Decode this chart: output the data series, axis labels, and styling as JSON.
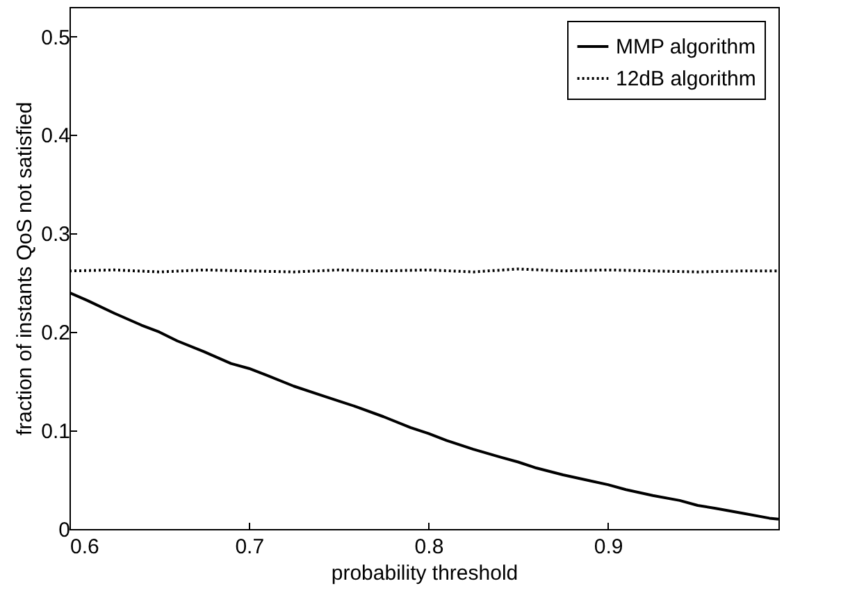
{
  "chart_data": {
    "type": "line",
    "xlabel": "probability threshold",
    "ylabel": "fraction of instants QoS not satisfied",
    "xlim": [
      0.6,
      0.995
    ],
    "ylim": [
      0,
      0.53
    ],
    "xticks": [
      0.6,
      0.7,
      0.8,
      0.9
    ],
    "yticks": [
      0,
      0.1,
      0.2,
      0.3,
      0.4,
      0.5
    ],
    "grid": false,
    "legend": "top right",
    "marker": "none",
    "series": [
      {
        "name": "MMP algorithm",
        "color": "#000000",
        "line_style": "solid",
        "x": [
          0.6,
          0.61,
          0.625,
          0.64,
          0.65,
          0.66,
          0.675,
          0.69,
          0.7,
          0.71,
          0.725,
          0.74,
          0.75,
          0.76,
          0.775,
          0.79,
          0.8,
          0.81,
          0.825,
          0.84,
          0.85,
          0.86,
          0.875,
          0.89,
          0.9,
          0.91,
          0.925,
          0.94,
          0.95,
          0.96,
          0.975,
          0.99,
          0.995
        ],
        "values": [
          0.24,
          0.232,
          0.219,
          0.207,
          0.2,
          0.191,
          0.18,
          0.168,
          0.163,
          0.156,
          0.145,
          0.136,
          0.13,
          0.124,
          0.114,
          0.103,
          0.097,
          0.09,
          0.081,
          0.073,
          0.068,
          0.062,
          0.055,
          0.049,
          0.045,
          0.04,
          0.034,
          0.029,
          0.024,
          0.021,
          0.016,
          0.011,
          0.01
        ]
      },
      {
        "name": "12dB algorithm",
        "color": "#000000",
        "line_style": "dotted",
        "x": [
          0.6,
          0.625,
          0.65,
          0.675,
          0.7,
          0.725,
          0.75,
          0.775,
          0.8,
          0.825,
          0.85,
          0.875,
          0.9,
          0.925,
          0.95,
          0.975,
          0.995
        ],
        "values": [
          0.262,
          0.263,
          0.261,
          0.263,
          0.262,
          0.261,
          0.263,
          0.262,
          0.263,
          0.261,
          0.264,
          0.262,
          0.263,
          0.262,
          0.261,
          0.262,
          0.262
        ]
      }
    ]
  }
}
